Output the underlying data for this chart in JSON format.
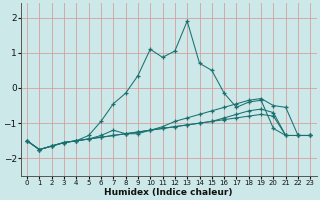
{
  "xlabel": "Humidex (Indice chaleur)",
  "background_color": "#cce8e8",
  "grid_color": "#d4a0a0",
  "line_color": "#1a7070",
  "xlim": [
    -0.5,
    23.5
  ],
  "ylim": [
    -2.5,
    2.4
  ],
  "yticks": [
    -2,
    -1,
    0,
    1,
    2
  ],
  "xticks": [
    0,
    1,
    2,
    3,
    4,
    5,
    6,
    7,
    8,
    9,
    10,
    11,
    12,
    13,
    14,
    15,
    16,
    17,
    18,
    19,
    20,
    21,
    22,
    23
  ],
  "lines": [
    {
      "x": [
        0,
        1,
        2,
        3,
        4,
        5,
        6,
        7,
        8,
        9,
        10,
        11,
        12,
        13,
        14,
        15,
        16,
        17,
        18,
        19,
        20,
        21,
        22,
        23
      ],
      "y": [
        -1.5,
        -1.75,
        -1.65,
        -1.55,
        -1.5,
        -1.45,
        -1.4,
        -1.35,
        -1.3,
        -1.25,
        -1.2,
        -1.15,
        -1.1,
        -1.05,
        -1.0,
        -0.95,
        -0.9,
        -0.85,
        -0.8,
        -0.75,
        -0.8,
        -1.35,
        -1.35,
        -1.35
      ]
    },
    {
      "x": [
        0,
        1,
        2,
        3,
        4,
        5,
        6,
        7,
        8,
        9,
        10,
        11,
        12,
        13,
        14,
        15,
        16,
        17,
        18,
        19,
        20,
        21,
        22,
        23
      ],
      "y": [
        -1.5,
        -1.75,
        -1.65,
        -1.55,
        -1.5,
        -1.45,
        -1.4,
        -1.35,
        -1.3,
        -1.25,
        -1.2,
        -1.15,
        -1.1,
        -1.05,
        -1.0,
        -0.95,
        -0.85,
        -0.75,
        -0.65,
        -0.6,
        -0.7,
        -1.35,
        -1.35,
        -1.35
      ]
    },
    {
      "x": [
        0,
        1,
        2,
        3,
        4,
        5,
        6,
        7,
        8,
        9,
        10,
        11,
        12,
        13,
        14,
        15,
        16,
        17,
        18,
        19,
        20,
        21,
        22,
        23
      ],
      "y": [
        -1.5,
        -1.75,
        -1.65,
        -1.55,
        -1.5,
        -1.45,
        -1.35,
        -1.2,
        -1.3,
        -1.3,
        -1.2,
        -1.1,
        -0.95,
        -0.85,
        -0.75,
        -0.65,
        -0.55,
        -0.45,
        -0.35,
        -0.3,
        -0.5,
        -0.55,
        -1.35,
        -1.35
      ]
    },
    {
      "x": [
        0,
        1,
        2,
        3,
        4,
        5,
        6,
        7,
        8,
        9,
        10,
        11,
        12,
        13,
        14,
        15,
        16,
        17,
        18,
        19,
        20,
        21,
        22,
        23
      ],
      "y": [
        -1.5,
        -1.75,
        -1.65,
        -1.55,
        -1.5,
        -1.35,
        -0.95,
        -0.45,
        -0.15,
        0.35,
        1.1,
        0.87,
        1.05,
        1.9,
        0.7,
        0.5,
        -0.15,
        -0.55,
        -0.4,
        -0.35,
        -1.15,
        -1.35,
        -1.35,
        -1.35
      ]
    }
  ]
}
